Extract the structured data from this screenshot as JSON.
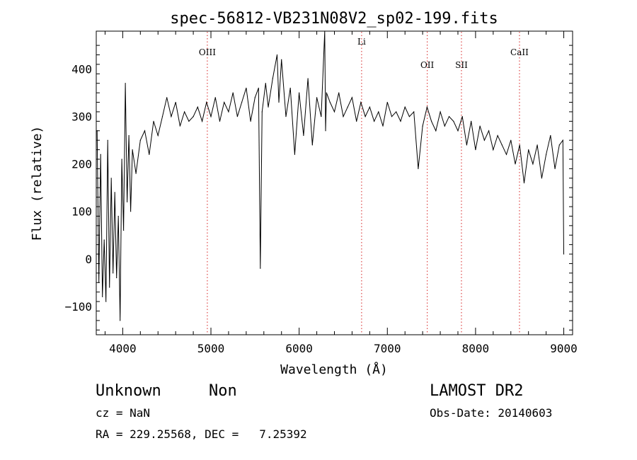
{
  "chart_data": {
    "type": "line",
    "title": "spec-56812-VB231N08V2_sp02-199.fits",
    "xlabel": "Wavelength (Å)",
    "ylabel": "Flux (relative)",
    "xlim": [
      3700,
      9100
    ],
    "ylim": [
      -160,
      480
    ],
    "xticks": [
      4000,
      5000,
      6000,
      7000,
      8000,
      9000
    ],
    "yticks": [
      -100,
      0,
      100,
      200,
      300,
      400
    ],
    "grid": false,
    "line_color": "#000000",
    "marker_color": "#dd4444",
    "line_markers": [
      {
        "label": "OIII",
        "x": 4959
      },
      {
        "label": "Li",
        "x": 6708
      },
      {
        "label": "OII",
        "x": 7452
      },
      {
        "label": "SII",
        "x": 7840
      },
      {
        "label": "CaII",
        "x": 8498
      }
    ],
    "series": [
      {
        "x": [
          3710,
          3730,
          3750,
          3770,
          3790,
          3810,
          3830,
          3850,
          3870,
          3890,
          3910,
          3930,
          3950,
          3970,
          3990,
          4010,
          4030,
          4050,
          4070,
          4090,
          4110,
          4150,
          4200,
          4250,
          4300,
          4350,
          4400,
          4450,
          4500,
          4550,
          4600,
          4650,
          4700,
          4750,
          4800,
          4850,
          4900,
          4950,
          5000,
          5050,
          5100,
          5150,
          5200,
          5250,
          5300,
          5350,
          5400,
          5450,
          5500,
          5540,
          5560,
          5580,
          5620,
          5650,
          5700,
          5750,
          5770,
          5800,
          5850,
          5900,
          5950,
          6000,
          6050,
          6100,
          6150,
          6200,
          6250,
          6290,
          6300,
          6310,
          6350,
          6400,
          6450,
          6500,
          6550,
          6600,
          6650,
          6700,
          6750,
          6800,
          6850,
          6900,
          6950,
          7000,
          7050,
          7100,
          7150,
          7200,
          7250,
          7300,
          7350,
          7400,
          7450,
          7500,
          7550,
          7600,
          7650,
          7700,
          7750,
          7800,
          7850,
          7900,
          7950,
          8000,
          8050,
          8100,
          8150,
          8200,
          8250,
          8300,
          8350,
          8400,
          8450,
          8500,
          8550,
          8600,
          8650,
          8700,
          8750,
          8800,
          8850,
          8900,
          8950,
          8990,
          9000
        ],
        "values": [
          270,
          -50,
          220,
          -80,
          40,
          -90,
          250,
          -60,
          170,
          -30,
          140,
          -40,
          90,
          -130,
          210,
          60,
          370,
          120,
          260,
          100,
          230,
          180,
          250,
          270,
          220,
          290,
          260,
          300,
          340,
          300,
          330,
          280,
          310,
          290,
          300,
          320,
          290,
          330,
          300,
          340,
          290,
          330,
          310,
          350,
          300,
          330,
          360,
          290,
          340,
          360,
          -20,
          310,
          370,
          320,
          380,
          430,
          330,
          420,
          300,
          360,
          220,
          350,
          260,
          380,
          240,
          340,
          300,
          480,
          270,
          350,
          330,
          310,
          350,
          300,
          320,
          340,
          290,
          330,
          300,
          320,
          290,
          310,
          280,
          330,
          300,
          310,
          290,
          320,
          300,
          310,
          190,
          280,
          320,
          290,
          270,
          310,
          280,
          300,
          290,
          270,
          300,
          240,
          290,
          230,
          280,
          250,
          270,
          230,
          260,
          240,
          220,
          250,
          200,
          240,
          160,
          230,
          200,
          240,
          170,
          220,
          260,
          190,
          240,
          250,
          10
        ]
      }
    ]
  },
  "info": {
    "class": "Unknown",
    "subclass": "Non",
    "survey": "LAMOST DR2",
    "cz": "cz = NaN",
    "obs_date": "Obs-Date: 20140603",
    "coords": "RA = 229.25568, DEC =   7.25392"
  }
}
